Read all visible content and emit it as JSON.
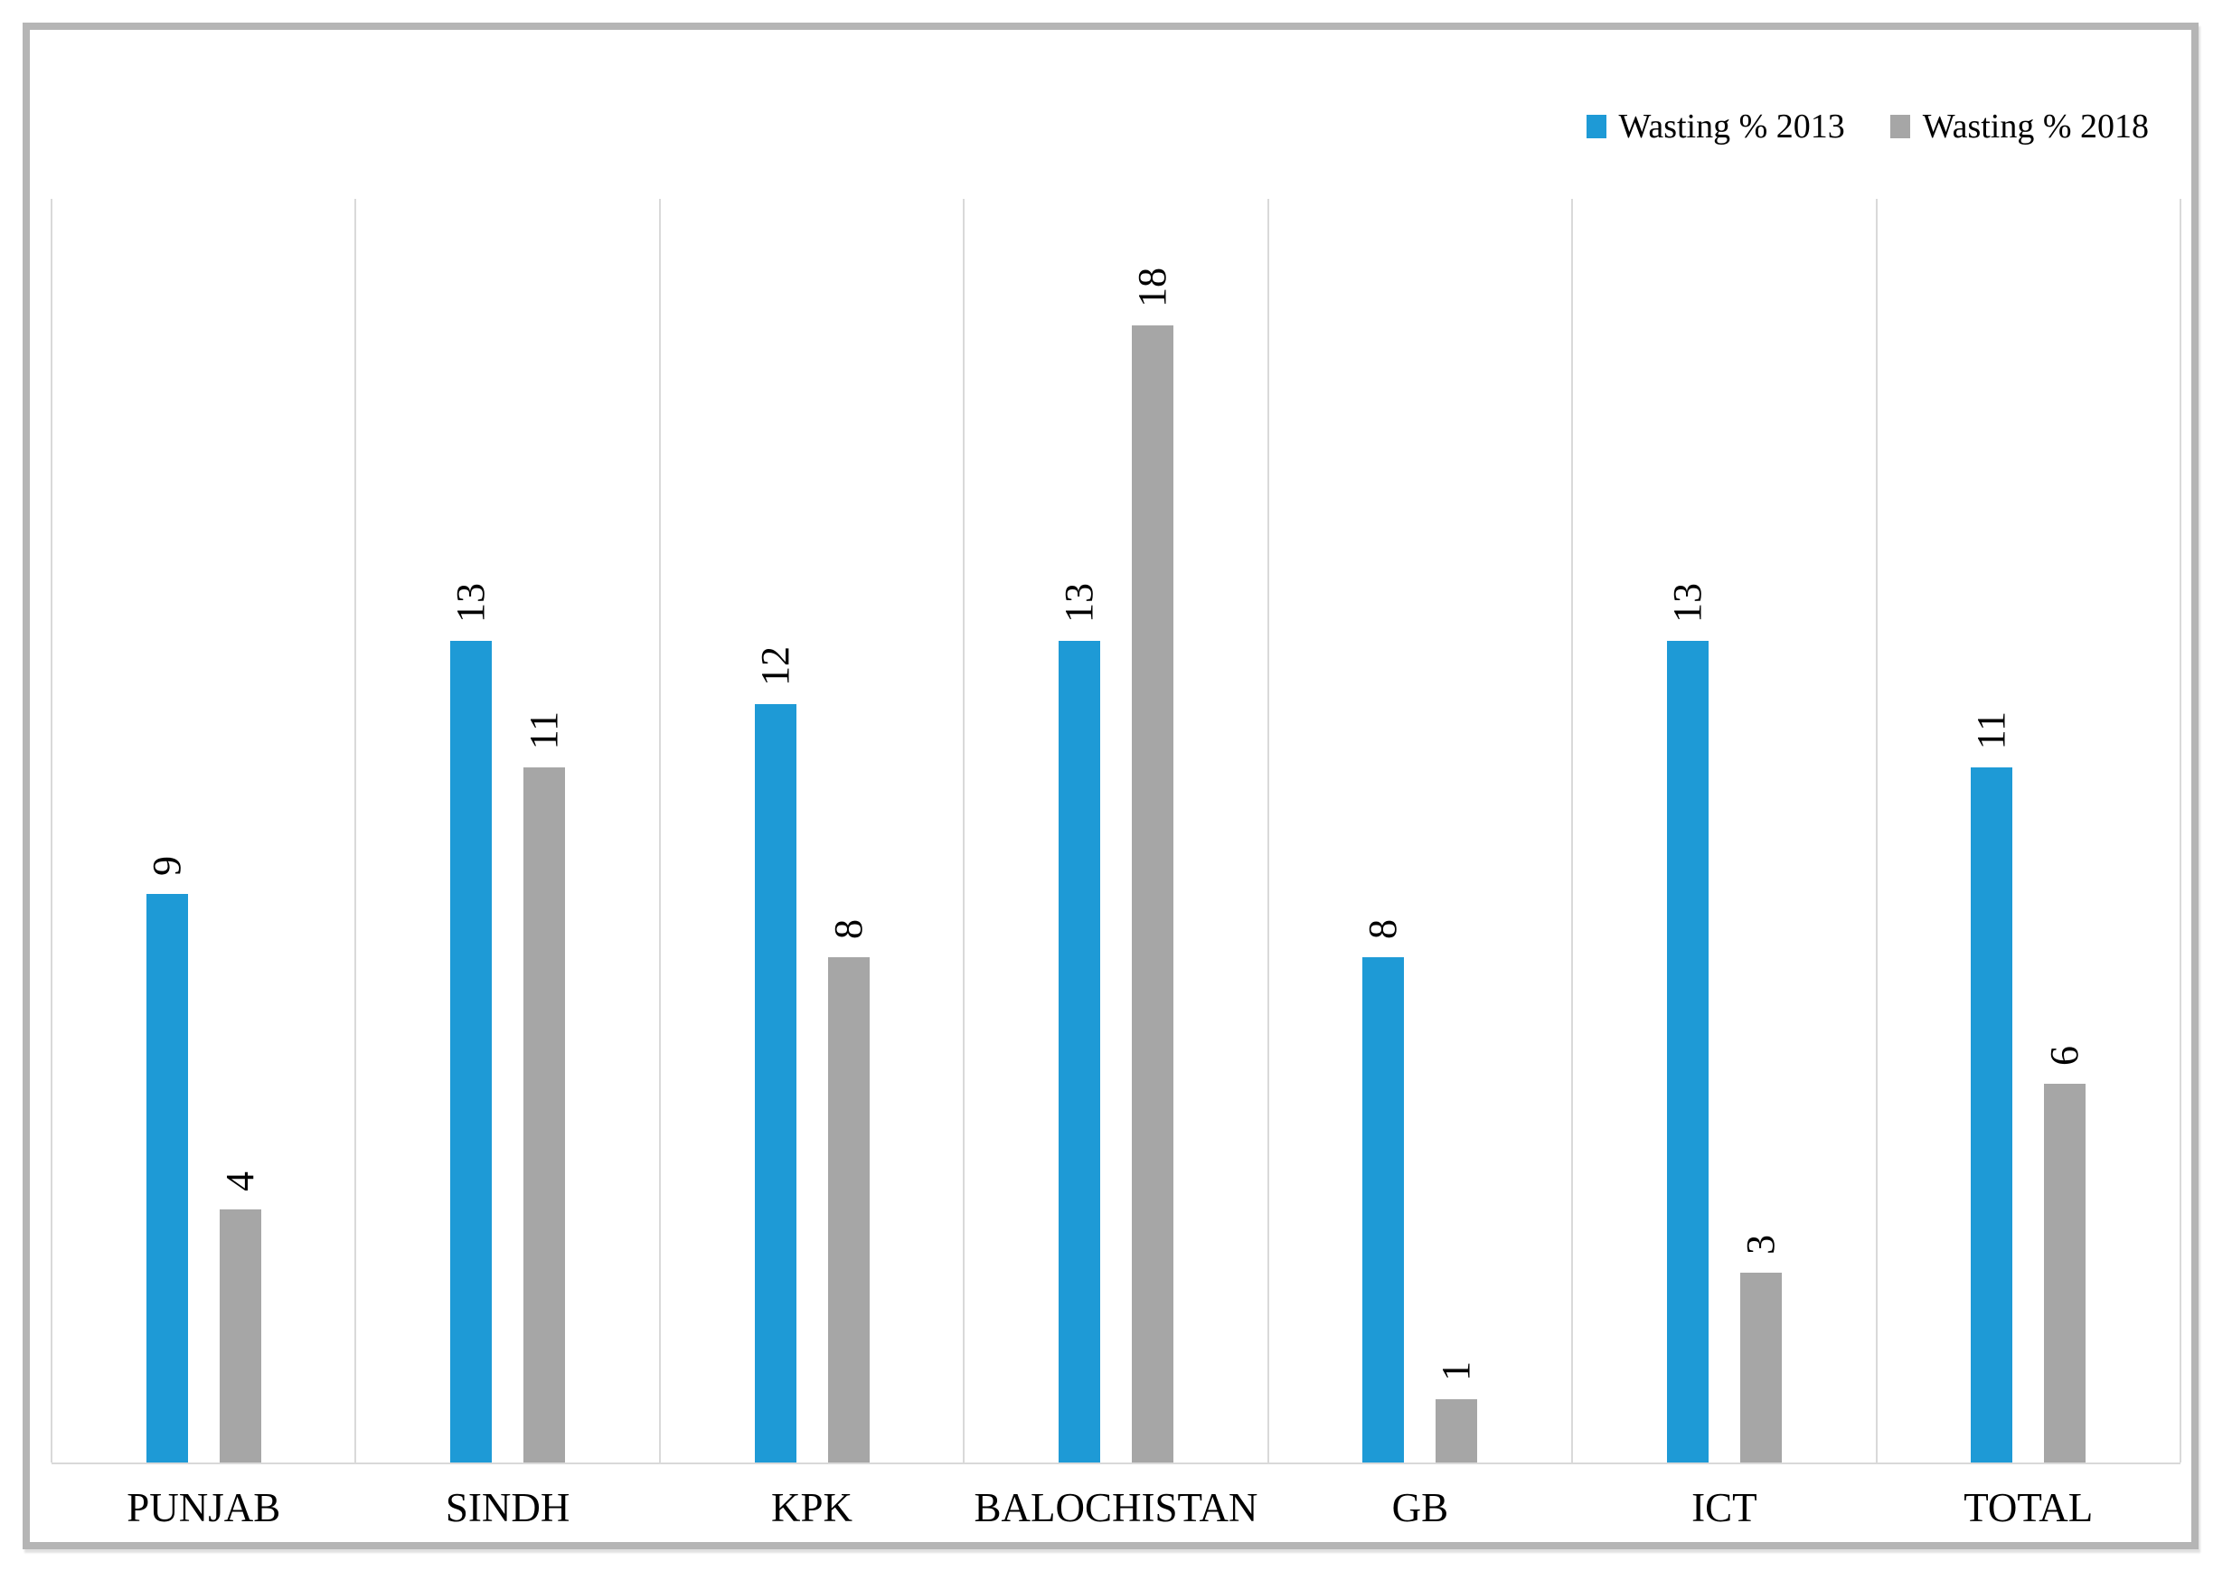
{
  "chart_data": {
    "type": "bar",
    "title": "",
    "xlabel": "",
    "ylabel": "",
    "categories": [
      "PUNJAB",
      "SINDH",
      "KPK",
      "BALOCHISTAN",
      "GB",
      "ICT",
      "TOTAL"
    ],
    "series": [
      {
        "name": "Wasting % 2013",
        "color": "#1E9AD6",
        "values": [
          9,
          13,
          12,
          13,
          8,
          13,
          11
        ]
      },
      {
        "name": "Wasting % 2018",
        "color": "#A6A6A6",
        "values": [
          4,
          11,
          8,
          18,
          1,
          3,
          6
        ]
      }
    ],
    "ylim": [
      0,
      20
    ],
    "grid": "vertical category separators only",
    "legend_position": "top-right",
    "data_labels": "values rotated 90° above bars"
  },
  "colors": {
    "grid": "#D9D9D9",
    "frame_border": "#B5B5B5",
    "text": "#000000",
    "background": "#FFFFFF"
  }
}
